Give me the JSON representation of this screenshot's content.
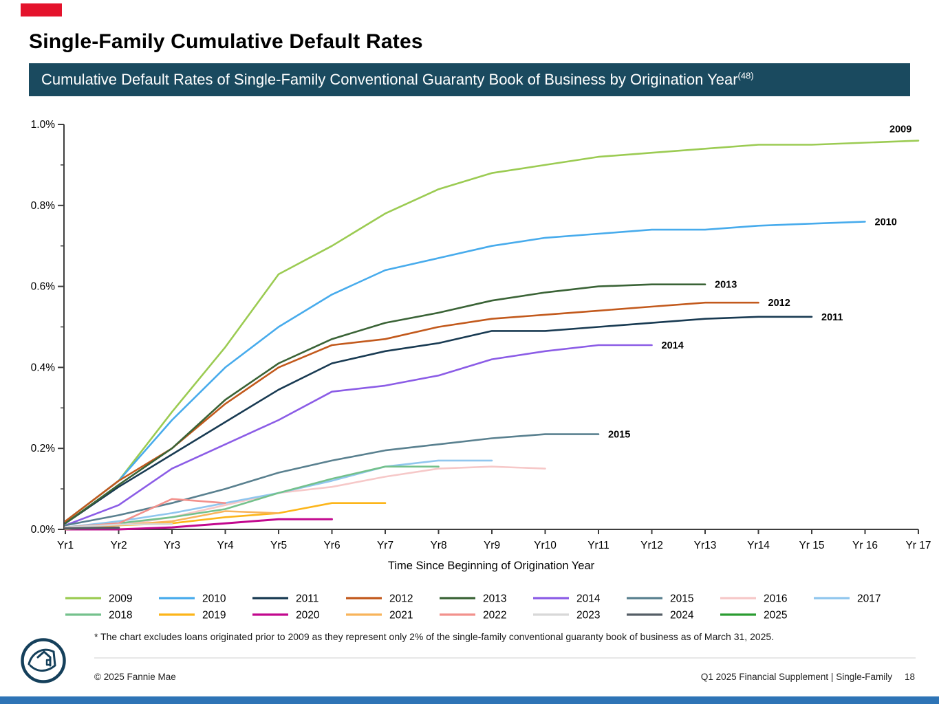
{
  "page": {
    "title": "Single-Family Cumulative Default Rates",
    "banner": {
      "text": "Cumulative Default Rates of Single-Family Conventional Guaranty Book of Business by Origination Year",
      "superscript": "(48)"
    },
    "footnote": "* The chart excludes loans originated prior to 2009 as they represent only 2% of the single-family conventional guaranty book of business as of March 31, 2025.",
    "footer": {
      "left": "© 2025 Fannie Mae",
      "right": "Q1 2025 Financial Supplement | Single-Family",
      "page_number": "18"
    },
    "colors": {
      "top_left_accent": "#E4132C",
      "bottom_bar": "#2E74B6",
      "banner_bg": "#1A4A5F",
      "logo_navy": "#15405B",
      "axis": "#3d3d3d"
    }
  },
  "chart_data": {
    "type": "line",
    "xlabel": "Time Since Beginning of Origination Year",
    "x_categories": [
      "Yr1",
      "Yr2",
      "Yr3",
      "Yr4",
      "Yr5",
      "Yr6",
      "Yr7",
      "Yr8",
      "Yr9",
      "Yr10",
      "Yr11",
      "Yr12",
      "Yr13",
      "Yr14",
      "Yr 15",
      "Yr 16",
      "Yr 17"
    ],
    "y_axis": {
      "min": 0,
      "max": 1.0,
      "major_step": 0.2,
      "minor_step": 0.1,
      "unit": "%",
      "tick_labels": [
        "0.0%",
        "0.2%",
        "0.4%",
        "0.6%",
        "0.8%",
        "1.0%"
      ]
    },
    "grid": false,
    "legend_position": "bottom",
    "legend_rows": [
      9,
      8
    ],
    "series": [
      {
        "name": "2009",
        "color": "#9BCB52",
        "labeled": true,
        "values": [
          0.02,
          0.12,
          0.29,
          0.45,
          0.63,
          0.7,
          0.78,
          0.84,
          0.88,
          0.9,
          0.92,
          0.93,
          0.94,
          0.95,
          0.95,
          0.955,
          0.96
        ]
      },
      {
        "name": "2010",
        "color": "#47ABEC",
        "labeled": true,
        "values": [
          0.02,
          0.12,
          0.27,
          0.4,
          0.5,
          0.58,
          0.64,
          0.67,
          0.7,
          0.72,
          0.73,
          0.74,
          0.74,
          0.75,
          0.755,
          0.76
        ]
      },
      {
        "name": "2011",
        "color": "#183A52",
        "labeled": true,
        "values": [
          0.015,
          0.105,
          0.185,
          0.265,
          0.345,
          0.41,
          0.44,
          0.46,
          0.49,
          0.49,
          0.5,
          0.51,
          0.52,
          0.525,
          0.525
        ]
      },
      {
        "name": "2012",
        "color": "#C2591C",
        "labeled": true,
        "values": [
          0.02,
          0.12,
          0.2,
          0.31,
          0.4,
          0.455,
          0.47,
          0.5,
          0.52,
          0.53,
          0.54,
          0.55,
          0.56,
          0.56
        ]
      },
      {
        "name": "2013",
        "color": "#3A6336",
        "labeled": true,
        "values": [
          0.015,
          0.11,
          0.2,
          0.32,
          0.41,
          0.47,
          0.51,
          0.535,
          0.565,
          0.585,
          0.6,
          0.605,
          0.605
        ]
      },
      {
        "name": "2014",
        "color": "#8B5CE6",
        "labeled": true,
        "values": [
          0.01,
          0.06,
          0.15,
          0.21,
          0.27,
          0.34,
          0.355,
          0.38,
          0.42,
          0.44,
          0.455,
          0.455
        ]
      },
      {
        "name": "2015",
        "color": "#59808F",
        "labeled": true,
        "values": [
          0.01,
          0.035,
          0.065,
          0.1,
          0.14,
          0.17,
          0.195,
          0.21,
          0.225,
          0.235,
          0.235
        ]
      },
      {
        "name": "2016",
        "color": "#F6C8C8",
        "labeled": false,
        "values": [
          0.005,
          0.01,
          0.03,
          0.06,
          0.09,
          0.105,
          0.13,
          0.15,
          0.155,
          0.15
        ]
      },
      {
        "name": "2017",
        "color": "#90C6EE",
        "labeled": false,
        "values": [
          0.005,
          0.02,
          0.04,
          0.065,
          0.09,
          0.12,
          0.155,
          0.17,
          0.17
        ]
      },
      {
        "name": "2018",
        "color": "#74C18C",
        "labeled": false,
        "values": [
          0.005,
          0.015,
          0.03,
          0.05,
          0.09,
          0.125,
          0.155,
          0.155
        ]
      },
      {
        "name": "2019",
        "color": "#FCB519",
        "labeled": false,
        "values": [
          0.005,
          0.01,
          0.015,
          0.03,
          0.04,
          0.065,
          0.065
        ]
      },
      {
        "name": "2020",
        "color": "#C2088E",
        "labeled": false,
        "values": [
          0.0,
          0.0,
          0.005,
          0.015,
          0.025,
          0.025
        ]
      },
      {
        "name": "2021",
        "color": "#F8B45B",
        "labeled": false,
        "values": [
          0.0,
          0.01,
          0.02,
          0.045,
          0.04
        ]
      },
      {
        "name": "2022",
        "color": "#F2918C",
        "labeled": false,
        "values": [
          0.005,
          0.015,
          0.075,
          0.065
        ]
      },
      {
        "name": "2023",
        "color": "#D8D8D8",
        "labeled": false,
        "values": [
          0.005,
          0.012,
          0.013
        ]
      },
      {
        "name": "2024",
        "color": "#555E66",
        "labeled": false,
        "values": [
          0.002,
          0.004
        ]
      },
      {
        "name": "2025",
        "color": "#2B9C31",
        "labeled": false,
        "values": [
          0.002
        ]
      }
    ]
  }
}
